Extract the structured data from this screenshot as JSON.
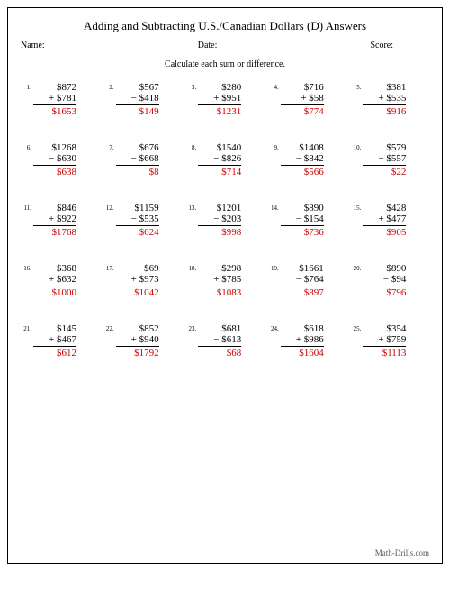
{
  "title": "Adding and Subtracting U.S./Canadian Dollars (D) Answers",
  "labels": {
    "name": "Name:",
    "date": "Date:",
    "score": "Score:"
  },
  "instruction": "Calculate each sum or difference.",
  "footer": "Math-Drills.com",
  "colors": {
    "text": "#000000",
    "answer": "#cc0000",
    "background": "#ffffff",
    "border": "#000000"
  },
  "typography": {
    "font_family": "Times New Roman, serif",
    "title_fontsize": 13,
    "body_fontsize": 11,
    "small_fontsize": 10,
    "num_fontsize": 7
  },
  "layout": {
    "rows": 5,
    "cols": 5
  },
  "problems": [
    {
      "n": "1.",
      "a": "$872",
      "op": "+",
      "b": "$781",
      "ans": "$1653"
    },
    {
      "n": "2.",
      "a": "$567",
      "op": "−",
      "b": "$418",
      "ans": "$149"
    },
    {
      "n": "3.",
      "a": "$280",
      "op": "+",
      "b": "$951",
      "ans": "$1231"
    },
    {
      "n": "4.",
      "a": "$716",
      "op": "+",
      "b": "$58",
      "ans": "$774"
    },
    {
      "n": "5.",
      "a": "$381",
      "op": "+",
      "b": "$535",
      "ans": "$916"
    },
    {
      "n": "6.",
      "a": "$1268",
      "op": "−",
      "b": "$630",
      "ans": "$638"
    },
    {
      "n": "7.",
      "a": "$676",
      "op": "−",
      "b": "$668",
      "ans": "$8"
    },
    {
      "n": "8.",
      "a": "$1540",
      "op": "−",
      "b": "$826",
      "ans": "$714"
    },
    {
      "n": "9.",
      "a": "$1408",
      "op": "−",
      "b": "$842",
      "ans": "$566"
    },
    {
      "n": "10.",
      "a": "$579",
      "op": "−",
      "b": "$557",
      "ans": "$22"
    },
    {
      "n": "11.",
      "a": "$846",
      "op": "+",
      "b": "$922",
      "ans": "$1768"
    },
    {
      "n": "12.",
      "a": "$1159",
      "op": "−",
      "b": "$535",
      "ans": "$624"
    },
    {
      "n": "13.",
      "a": "$1201",
      "op": "−",
      "b": "$203",
      "ans": "$998"
    },
    {
      "n": "14.",
      "a": "$890",
      "op": "−",
      "b": "$154",
      "ans": "$736"
    },
    {
      "n": "15.",
      "a": "$428",
      "op": "+",
      "b": "$477",
      "ans": "$905"
    },
    {
      "n": "16.",
      "a": "$368",
      "op": "+",
      "b": "$632",
      "ans": "$1000"
    },
    {
      "n": "17.",
      "a": "$69",
      "op": "+",
      "b": "$973",
      "ans": "$1042"
    },
    {
      "n": "18.",
      "a": "$298",
      "op": "+",
      "b": "$785",
      "ans": "$1083"
    },
    {
      "n": "19.",
      "a": "$1661",
      "op": "−",
      "b": "$764",
      "ans": "$897"
    },
    {
      "n": "20.",
      "a": "$890",
      "op": "−",
      "b": "$94",
      "ans": "$796"
    },
    {
      "n": "21.",
      "a": "$145",
      "op": "+",
      "b": "$467",
      "ans": "$612"
    },
    {
      "n": "22.",
      "a": "$852",
      "op": "+",
      "b": "$940",
      "ans": "$1792"
    },
    {
      "n": "23.",
      "a": "$681",
      "op": "−",
      "b": "$613",
      "ans": "$68"
    },
    {
      "n": "24.",
      "a": "$618",
      "op": "+",
      "b": "$986",
      "ans": "$1604"
    },
    {
      "n": "25.",
      "a": "$354",
      "op": "+",
      "b": "$759",
      "ans": "$1113"
    }
  ]
}
